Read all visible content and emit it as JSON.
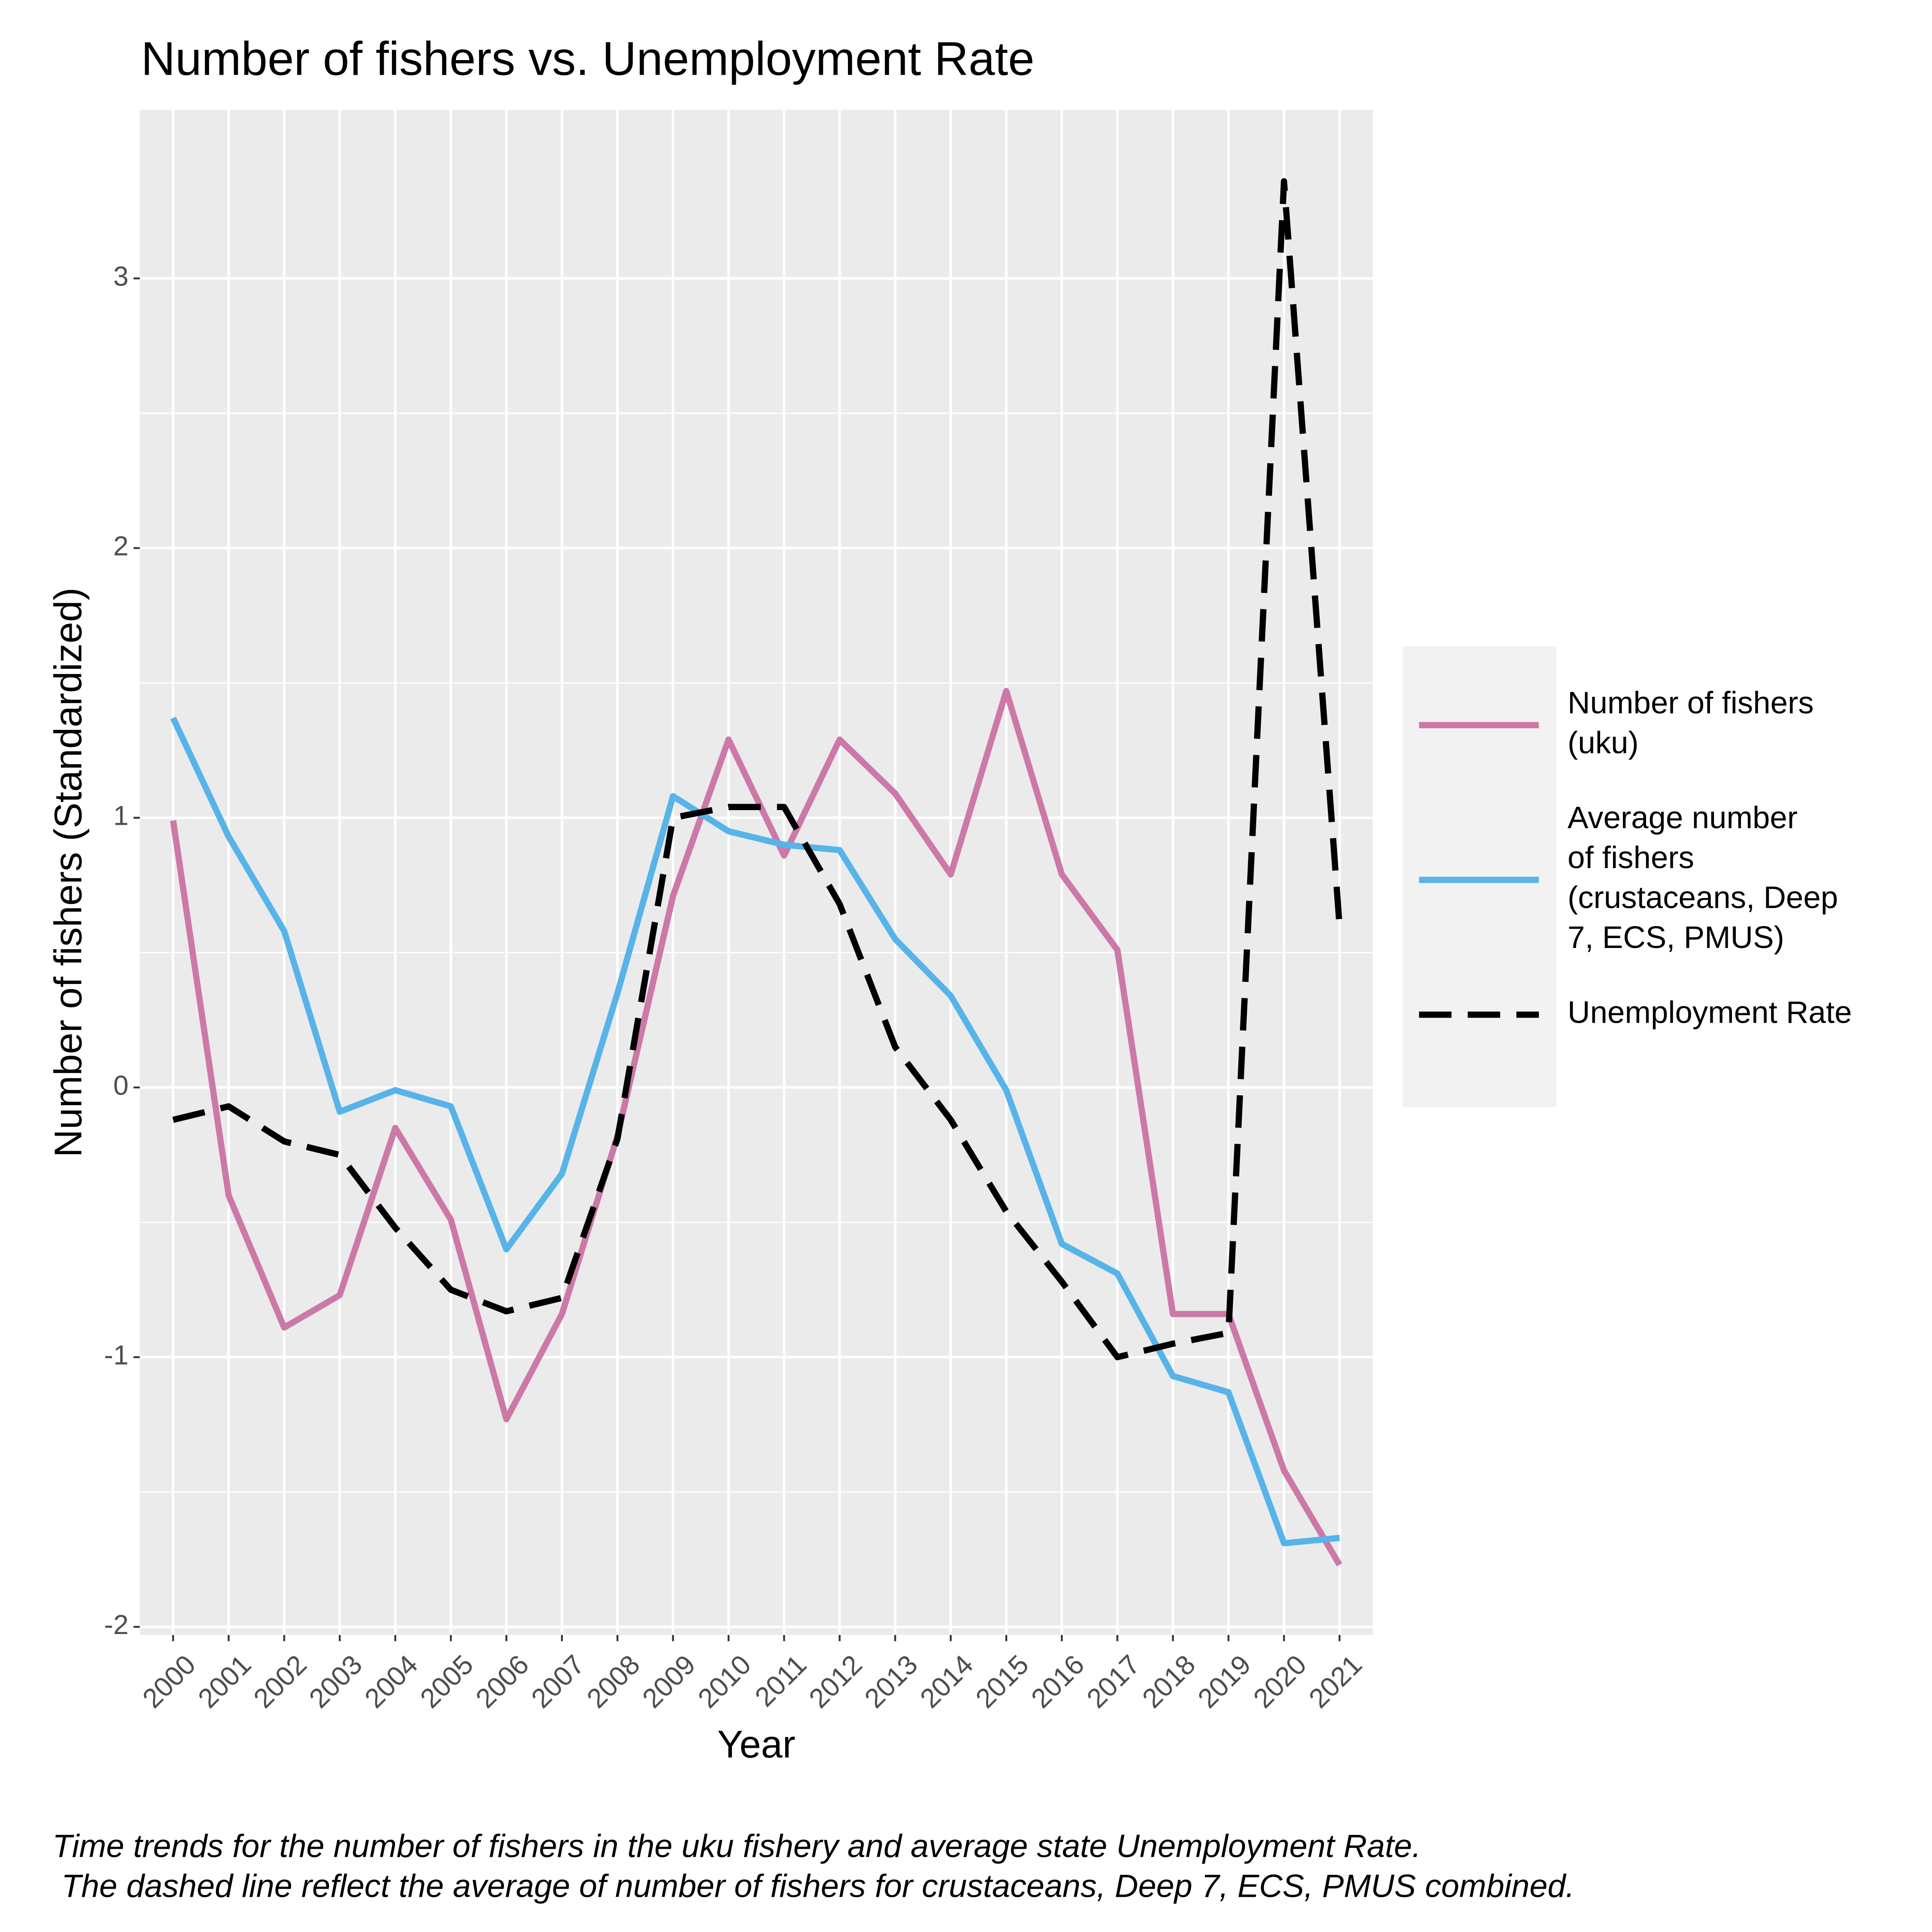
{
  "chart_data": {
    "type": "line",
    "title": "Number of fishers vs. Unemployment Rate",
    "x_label": "Year",
    "y_label": "Number of fishers (Standardized)",
    "caption": "Time trends for the number of fishers in the uku fishery and average state Unemployment Rate.\n The dashed line reflect the average of number of fishers for crustaceans, Deep 7, ECS, PMUS combined.",
    "categories": [
      "2000",
      "2001",
      "2002",
      "2003",
      "2004",
      "2005",
      "2006",
      "2007",
      "2008",
      "2009",
      "2010",
      "2011",
      "2012",
      "2013",
      "2014",
      "2015",
      "2016",
      "2017",
      "2018",
      "2019",
      "2020",
      "2021"
    ],
    "series": [
      {
        "name": "Number of fishers\n(uku)",
        "color": "#cc79a7",
        "dash": false,
        "values": [
          0.99,
          -0.4,
          -0.89,
          -0.77,
          -0.15,
          -0.49,
          -1.23,
          -0.84,
          -0.18,
          0.71,
          1.29,
          0.86,
          1.29,
          1.09,
          0.79,
          1.47,
          0.79,
          0.51,
          -0.84,
          -0.84,
          -1.42,
          -1.77
        ]
      },
      {
        "name": "Average number\nof fishers\n(crustaceans, Deep\n7, ECS, PMUS)",
        "color": "#56b4e9",
        "dash": false,
        "values": [
          1.37,
          0.93,
          0.58,
          -0.09,
          -0.01,
          -0.07,
          -0.6,
          -0.32,
          0.35,
          1.08,
          0.95,
          0.9,
          0.88,
          0.55,
          0.34,
          -0.01,
          -0.58,
          -0.69,
          -1.07,
          -1.13,
          -1.69,
          -1.67
        ]
      },
      {
        "name": "Unemployment Rate",
        "color": "#000000",
        "dash": true,
        "values": [
          -0.12,
          -0.07,
          -0.2,
          -0.25,
          -0.52,
          -0.75,
          -0.83,
          -0.78,
          -0.19,
          1.0,
          1.04,
          1.04,
          0.68,
          0.15,
          -0.12,
          -0.46,
          -0.72,
          -1.0,
          -0.95,
          -0.91,
          3.36,
          0.6
        ]
      }
    ],
    "ylim": [
      -2.03,
      3.625
    ],
    "yticks": [
      -2,
      -1,
      0,
      1,
      2,
      3
    ],
    "grid": true,
    "legend": "right"
  }
}
